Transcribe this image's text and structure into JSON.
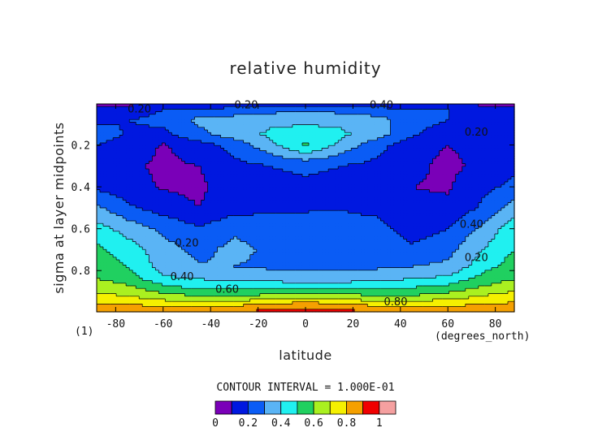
{
  "chart_data": {
    "type": "heatmap",
    "title": "relative humidity",
    "xlabel": "latitude",
    "ylabel": "sigma at layer midpoints",
    "x_units": "(degrees_north)",
    "y_corner_label": "(1)",
    "xlim": [
      -88,
      88
    ],
    "ylim": [
      0.997,
      0.004
    ],
    "x_ticks": [
      "-80",
      "-60",
      "-40",
      "-20",
      "0",
      "20",
      "40",
      "60",
      "80"
    ],
    "y_ticks": [
      "0.2",
      "0.4",
      "0.6",
      "0.8"
    ],
    "contour_interval_text": "CONTOUR INTERVAL = 1.000E-01",
    "colorbar": {
      "levels": [
        0,
        0.1,
        0.2,
        0.3,
        0.4,
        0.5,
        0.6,
        0.7,
        0.8,
        0.9,
        1.0
      ],
      "labels": [
        "0",
        "0.2",
        "0.4",
        "0.6",
        "0.8",
        "1"
      ],
      "colors": [
        "#7a00b8",
        "#0018e0",
        "#0a5cf5",
        "#5ab4f5",
        "#20f0f0",
        "#20d060",
        "#aaf020",
        "#f5f000",
        "#f5a000",
        "#f00000"
      ],
      "top_color": "#f5a0a0"
    },
    "contour_labels": [
      "0.20",
      "0.20",
      "0.40",
      "0.20",
      "0.20",
      "0.40",
      "0.20",
      "0.40",
      "0.60",
      "0.80"
    ],
    "lat": [
      -88,
      -75,
      -60,
      -45,
      -30,
      -15,
      0,
      15,
      30,
      45,
      60,
      75,
      88
    ],
    "sigma": [
      0.004,
      0.03,
      0.08,
      0.15,
      0.2,
      0.3,
      0.4,
      0.5,
      0.6,
      0.7,
      0.78,
      0.84,
      0.88,
      0.92,
      0.95,
      0.975,
      0.997
    ],
    "values": [
      [
        0.05,
        0.08,
        0.1,
        0.1,
        0.12,
        0.15,
        0.16,
        0.15,
        0.12,
        0.1,
        0.1,
        0.08,
        0.05
      ],
      [
        0.12,
        0.15,
        0.2,
        0.22,
        0.24,
        0.26,
        0.27,
        0.26,
        0.24,
        0.22,
        0.2,
        0.15,
        0.12
      ],
      [
        0.18,
        0.2,
        0.22,
        0.33,
        0.34,
        0.37,
        0.38,
        0.37,
        0.33,
        0.26,
        0.2,
        0.18,
        0.16
      ],
      [
        0.25,
        0.19,
        0.18,
        0.27,
        0.35,
        0.42,
        0.44,
        0.42,
        0.35,
        0.22,
        0.12,
        0.15,
        0.18
      ],
      [
        0.2,
        0.16,
        0.09,
        0.16,
        0.24,
        0.37,
        0.52,
        0.37,
        0.24,
        0.13,
        0.1,
        0.13,
        0.18
      ],
      [
        0.18,
        0.12,
        0.08,
        0.1,
        0.17,
        0.2,
        0.22,
        0.2,
        0.17,
        0.12,
        0.08,
        0.12,
        0.18
      ],
      [
        0.18,
        0.14,
        0.09,
        0.08,
        0.15,
        0.17,
        0.18,
        0.17,
        0.15,
        0.1,
        0.09,
        0.18,
        0.22
      ],
      [
        0.32,
        0.22,
        0.15,
        0.1,
        0.16,
        0.18,
        0.19,
        0.19,
        0.17,
        0.12,
        0.12,
        0.22,
        0.35
      ],
      [
        0.44,
        0.36,
        0.28,
        0.21,
        0.28,
        0.25,
        0.24,
        0.26,
        0.24,
        0.15,
        0.2,
        0.33,
        0.46
      ],
      [
        0.52,
        0.45,
        0.34,
        0.27,
        0.33,
        0.28,
        0.3,
        0.28,
        0.26,
        0.22,
        0.27,
        0.4,
        0.5
      ],
      [
        0.56,
        0.5,
        0.36,
        0.31,
        0.3,
        0.28,
        0.27,
        0.27,
        0.28,
        0.3,
        0.32,
        0.46,
        0.55
      ],
      [
        0.6,
        0.56,
        0.42,
        0.4,
        0.38,
        0.37,
        0.36,
        0.36,
        0.38,
        0.4,
        0.43,
        0.54,
        0.6
      ],
      [
        0.66,
        0.62,
        0.53,
        0.48,
        0.47,
        0.46,
        0.46,
        0.46,
        0.47,
        0.5,
        0.53,
        0.61,
        0.66
      ],
      [
        0.72,
        0.7,
        0.63,
        0.6,
        0.6,
        0.62,
        0.65,
        0.63,
        0.6,
        0.6,
        0.64,
        0.7,
        0.74
      ],
      [
        0.79,
        0.77,
        0.73,
        0.71,
        0.72,
        0.76,
        0.8,
        0.76,
        0.72,
        0.72,
        0.74,
        0.77,
        0.8
      ],
      [
        0.84,
        0.83,
        0.82,
        0.82,
        0.83,
        0.86,
        0.89,
        0.86,
        0.83,
        0.82,
        0.82,
        0.83,
        0.85
      ],
      [
        0.86,
        0.87,
        0.88,
        0.89,
        0.9,
        0.93,
        0.95,
        0.93,
        0.9,
        0.89,
        0.88,
        0.87,
        0.86
      ]
    ]
  }
}
